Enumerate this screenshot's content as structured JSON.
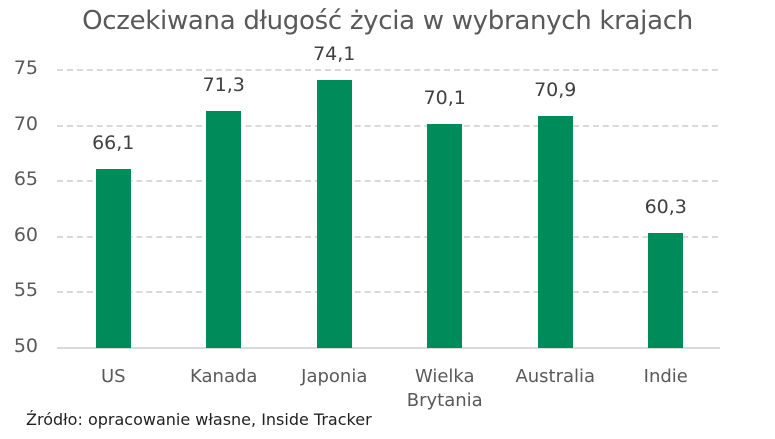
{
  "chart_data": {
    "type": "bar",
    "title": "Oczekiwana długość życia w wybranych krajach",
    "categories": [
      "US",
      "Kanada",
      "Japonia",
      "Wielka Brytania",
      "Australia",
      "Indie"
    ],
    "category_lines": [
      [
        "US"
      ],
      [
        "Kanada"
      ],
      [
        "Japonia"
      ],
      [
        "Wielka",
        "Brytania"
      ],
      [
        "Australia"
      ],
      [
        "Indie"
      ]
    ],
    "values": [
      66.1,
      71.3,
      74.1,
      70.1,
      70.9,
      60.3
    ],
    "value_labels": [
      "66,1",
      "71,3",
      "74,1",
      "70,1",
      "70,9",
      "60,3"
    ],
    "xlabel": "",
    "ylabel": "",
    "ylim": [
      50,
      75
    ],
    "yticks": [
      50,
      55,
      60,
      65,
      70,
      75
    ],
    "grid": true,
    "legend": null,
    "bar_color": "#008c5a",
    "source": "Źródło: opracowanie własne, Inside Tracker"
  }
}
